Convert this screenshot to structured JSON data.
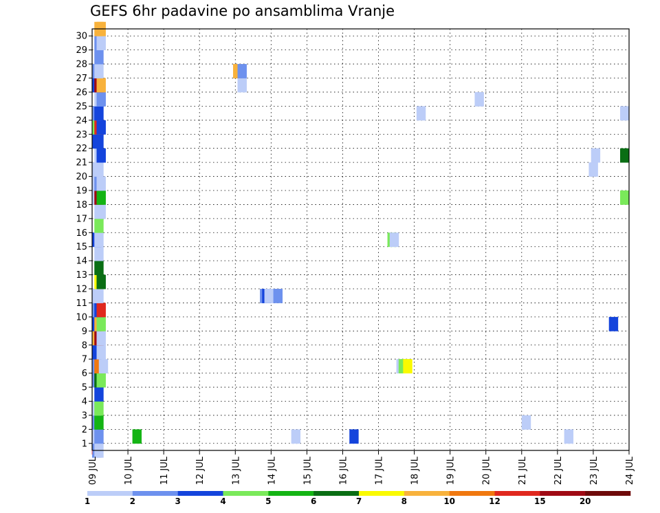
{
  "chart_data": {
    "type": "heatmap",
    "title": "GEFS 6hr padavine po ansamblima Vranje",
    "xlabel": "",
    "ylabel": "",
    "x_ticks": [
      "09 JUL",
      "10 JUL",
      "11 JUL",
      "12 JUL",
      "13 JUL",
      "14 JUL",
      "15 JUL",
      "16 JUL",
      "17 JUL",
      "18 JUL",
      "19 JUL",
      "20 JUL",
      "21 JUL",
      "22 JUL",
      "23 JUL",
      "24 JUL"
    ],
    "xlim_days": [
      0,
      15
    ],
    "ylim": [
      0,
      30
    ],
    "y_ticks": [
      1,
      2,
      3,
      4,
      5,
      6,
      7,
      8,
      9,
      10,
      11,
      12,
      13,
      14,
      15,
      16,
      17,
      18,
      19,
      20,
      21,
      22,
      23,
      24,
      25,
      26,
      27,
      28,
      29,
      30
    ],
    "grid": true,
    "colorbar": {
      "levels": [
        1,
        2,
        3,
        4,
        5,
        6,
        7,
        8,
        10,
        12,
        15,
        20
      ],
      "colors": [
        "#bccdf8",
        "#6d91ee",
        "#1444dc",
        "#7ae95a",
        "#14b414",
        "#0a6e14",
        "#fafa00",
        "#f8b23c",
        "#f0780f",
        "#e0281e",
        "#a00a14",
        "#6e0a0a"
      ]
    },
    "cells": [
      [
        0,
        1
      ],
      [
        0,
        2
      ],
      [
        0,
        3
      ],
      [
        0,
        4
      ],
      [
        0,
        5
      ],
      [
        0,
        6
      ],
      [
        0,
        7
      ],
      [
        0,
        8
      ],
      [
        0,
        9
      ],
      [
        0,
        10
      ],
      [
        0,
        11
      ],
      [
        0,
        12
      ],
      [
        0,
        13
      ],
      [
        0,
        14
      ],
      [
        0,
        15
      ],
      [
        0,
        16
      ],
      [
        0,
        17
      ],
      [
        0,
        18
      ],
      [
        0,
        19
      ],
      [
        0,
        20
      ],
      [
        0,
        21
      ],
      [
        0,
        22
      ],
      [
        0,
        23
      ],
      [
        0,
        24
      ],
      [
        0,
        25
      ],
      [
        0,
        26
      ],
      [
        0,
        27
      ],
      [
        0,
        28
      ],
      [
        0,
        29
      ],
      [
        0,
        30
      ]
    ],
    "cells_by_member": [
      {
        "x": 1.0,
        "m": 0,
        "c": 1
      },
      {
        "x": 1.25,
        "m": 0,
        "c": 0
      },
      {
        "x": 1.0,
        "m": 1,
        "c": 0
      },
      {
        "x": 1.25,
        "m": 1,
        "c": 1
      },
      {
        "x": 5.5,
        "m": 1,
        "c": 4
      },
      {
        "x": 23.25,
        "m": 1,
        "c": 0
      },
      {
        "x": 29.75,
        "m": 1,
        "c": 2
      },
      {
        "x": 53.75,
        "m": 1,
        "c": 0
      },
      {
        "x": 1.0,
        "m": 2,
        "c": 1
      },
      {
        "x": 1.25,
        "m": 2,
        "c": 4
      },
      {
        "x": 49.0,
        "m": 2,
        "c": 0
      },
      {
        "x": 1.0,
        "m": 3,
        "c": 0
      },
      {
        "x": 1.25,
        "m": 3,
        "c": 3
      },
      {
        "x": 1.25,
        "m": 4,
        "c": 2
      },
      {
        "x": 1.0,
        "m": 5,
        "c": 1
      },
      {
        "x": 1.25,
        "m": 5,
        "c": 5
      },
      {
        "x": 1.5,
        "m": 5,
        "c": 3
      },
      {
        "x": 1.0,
        "m": 6,
        "c": 1
      },
      {
        "x": 1.25,
        "m": 6,
        "c": 8
      },
      {
        "x": 1.5,
        "m": 6,
        "c": 8
      },
      {
        "x": 1.75,
        "m": 6,
        "c": 0
      },
      {
        "x": 35.0,
        "m": 6,
        "c": 0
      },
      {
        "x": 35.25,
        "m": 6,
        "c": 3
      },
      {
        "x": 35.5,
        "m": 6,
        "c": 3
      },
      {
        "x": 35.75,
        "m": 6,
        "c": 6
      },
      {
        "x": 1.0,
        "m": 7,
        "c": 2
      },
      {
        "x": 1.5,
        "m": 7,
        "c": 0
      },
      {
        "x": 1.0,
        "m": 8,
        "c": 7
      },
      {
        "x": 1.25,
        "m": 8,
        "c": 10
      },
      {
        "x": 1.5,
        "m": 8,
        "c": 0
      },
      {
        "x": 1.0,
        "m": 9,
        "c": 2
      },
      {
        "x": 1.25,
        "m": 9,
        "c": 7
      },
      {
        "x": 1.5,
        "m": 9,
        "c": 3
      },
      {
        "x": 58.75,
        "m": 9,
        "c": 2
      },
      {
        "x": 1.0,
        "m": 10,
        "c": 1
      },
      {
        "x": 1.25,
        "m": 10,
        "c": 2
      },
      {
        "x": 1.5,
        "m": 10,
        "c": 9
      },
      {
        "x": 1.0,
        "m": 11,
        "c": 0
      },
      {
        "x": 1.25,
        "m": 11,
        "c": 0
      },
      {
        "x": 19.75,
        "m": 11,
        "c": 1
      },
      {
        "x": 20.0,
        "m": 11,
        "c": 2
      },
      {
        "x": 20.25,
        "m": 11,
        "c": 0
      },
      {
        "x": 21.25,
        "m": 11,
        "c": 1
      },
      {
        "x": 1.25,
        "m": 12,
        "c": 6
      },
      {
        "x": 1.5,
        "m": 12,
        "c": 5
      },
      {
        "x": 1.25,
        "m": 13,
        "c": 5
      },
      {
        "x": 1.25,
        "m": 14,
        "c": 0
      },
      {
        "x": 1.0,
        "m": 15,
        "c": 2
      },
      {
        "x": 1.25,
        "m": 15,
        "c": 0
      },
      {
        "x": 34.0,
        "m": 15,
        "c": 3
      },
      {
        "x": 34.25,
        "m": 15,
        "c": 0
      },
      {
        "x": 1.25,
        "m": 16,
        "c": 3
      },
      {
        "x": 1.25,
        "m": 17,
        "c": 0
      },
      {
        "x": 1.5,
        "m": 17,
        "c": 0
      },
      {
        "x": 1.0,
        "m": 18,
        "c": 0
      },
      {
        "x": 1.25,
        "m": 18,
        "c": 10
      },
      {
        "x": 1.5,
        "m": 18,
        "c": 4
      },
      {
        "x": 60.0,
        "m": 18,
        "c": 3
      },
      {
        "x": 1.0,
        "m": 19,
        "c": 0
      },
      {
        "x": 1.25,
        "m": 19,
        "c": 1
      },
      {
        "x": 1.5,
        "m": 19,
        "c": 0
      },
      {
        "x": 1.0,
        "m": 20,
        "c": 0
      },
      {
        "x": 1.25,
        "m": 20,
        "c": 0
      },
      {
        "x": 56.5,
        "m": 20,
        "c": 0
      },
      {
        "x": 1.25,
        "m": 21,
        "c": 0
      },
      {
        "x": 1.5,
        "m": 21,
        "c": 2
      },
      {
        "x": 56.75,
        "m": 21,
        "c": 0
      },
      {
        "x": 60.0,
        "m": 21,
        "c": 5
      },
      {
        "x": 1.0,
        "m": 22,
        "c": 2
      },
      {
        "x": 1.25,
        "m": 22,
        "c": 2
      },
      {
        "x": 1.0,
        "m": 23,
        "c": 3
      },
      {
        "x": 1.25,
        "m": 23,
        "c": 9
      },
      {
        "x": 1.5,
        "m": 23,
        "c": 2
      },
      {
        "x": 1.0,
        "m": 24,
        "c": 1
      },
      {
        "x": 1.25,
        "m": 24,
        "c": 2
      },
      {
        "x": 37.25,
        "m": 24,
        "c": 0
      },
      {
        "x": 60.0,
        "m": 24,
        "c": 0
      },
      {
        "x": 1.25,
        "m": 25,
        "c": 0
      },
      {
        "x": 1.5,
        "m": 25,
        "c": 1
      },
      {
        "x": 43.75,
        "m": 25,
        "c": 0
      },
      {
        "x": 1.0,
        "m": 26,
        "c": 2
      },
      {
        "x": 1.25,
        "m": 26,
        "c": 10
      },
      {
        "x": 1.5,
        "m": 26,
        "c": 7
      },
      {
        "x": 17.25,
        "m": 26,
        "c": 0
      },
      {
        "x": 1.0,
        "m": 27,
        "c": 1
      },
      {
        "x": 1.25,
        "m": 27,
        "c": 0
      },
      {
        "x": 16.75,
        "m": 27,
        "c": 7
      },
      {
        "x": 17.25,
        "m": 27,
        "c": 1
      },
      {
        "x": 1.25,
        "m": 28,
        "c": 1
      },
      {
        "x": 1.25,
        "m": 29,
        "c": 1
      },
      {
        "x": 1.5,
        "m": 29,
        "c": 0
      },
      {
        "x": 1.25,
        "m": 30,
        "c": 7
      },
      {
        "x": 1.5,
        "m": 30,
        "c": 7
      }
    ]
  }
}
